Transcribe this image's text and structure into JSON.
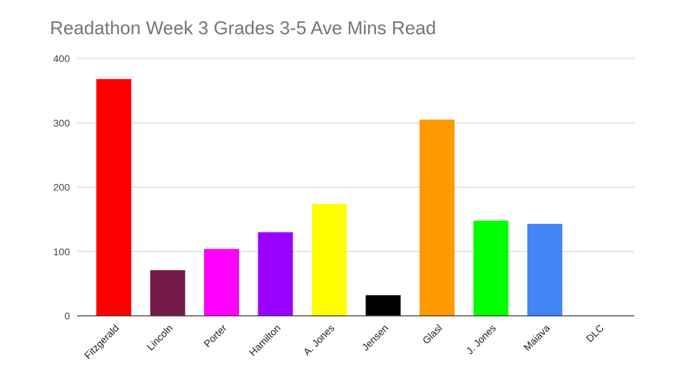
{
  "chart_data": {
    "type": "bar",
    "title": "Readathon Week 3 Grades 3-5 Ave Mins Read",
    "xlabel": "",
    "ylabel": "",
    "ylim": [
      0,
      400
    ],
    "yticks": [
      0,
      100,
      200,
      300,
      400
    ],
    "grid": true,
    "legend": "none",
    "categories": [
      "Fitzgerald",
      "Lincoln",
      "Porter",
      "Hamilton",
      "A. Jones",
      "Jensen",
      "Glasl",
      "J. Jones",
      "Maiava",
      "DLC"
    ],
    "values": [
      368,
      71,
      104,
      130,
      174,
      32,
      305,
      148,
      143,
      0
    ],
    "colors": [
      "#ff0000",
      "#741b47",
      "#ff00ff",
      "#9900ff",
      "#ffff00",
      "#000000",
      "#ff9900",
      "#00ff00",
      "#4285f4",
      "#cccccc"
    ]
  }
}
